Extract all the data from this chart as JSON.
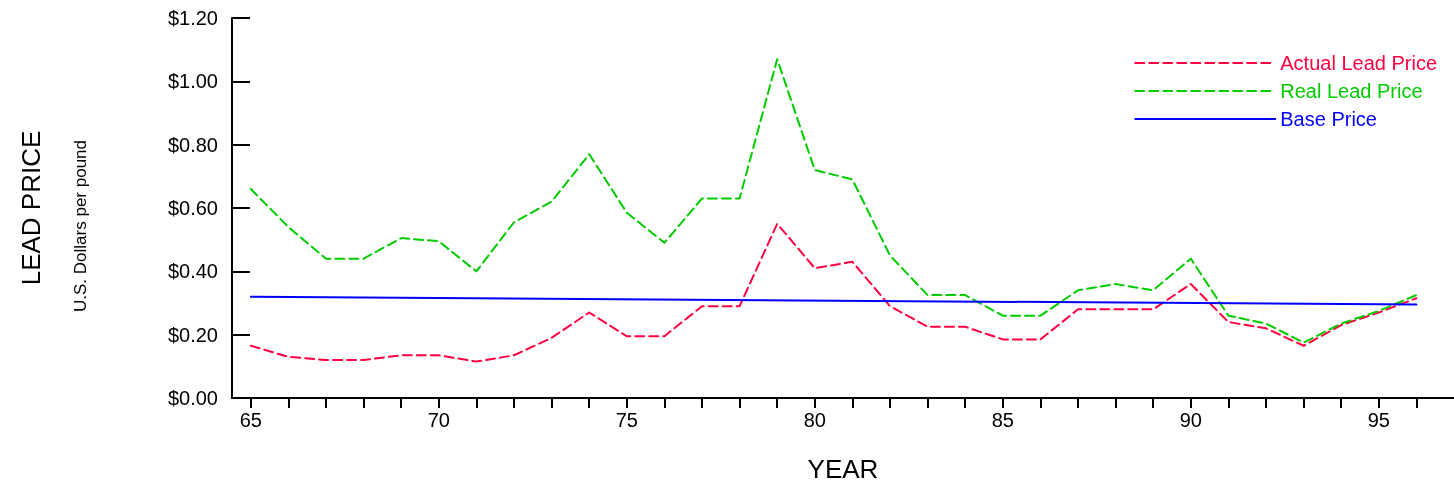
{
  "chart_data": {
    "type": "line",
    "ylabel": "LEAD PRICE",
    "xlabel": "YEAR",
    "annotations": [
      "U.S. Dollars per pound"
    ],
    "xlim": [
      64.5,
      97
    ],
    "xticks": [
      65,
      {
        "value": 66,
        "label": null
      },
      {
        "value": 67,
        "label": null
      },
      {
        "value": 68,
        "label": null
      },
      {
        "value": 69,
        "label": null
      },
      70,
      {
        "value": 71,
        "label": null
      },
      {
        "value": 72,
        "label": null
      },
      {
        "value": 73,
        "label": null
      },
      {
        "value": 74,
        "label": null
      },
      75,
      {
        "value": 76,
        "label": null
      },
      {
        "value": 77,
        "label": null
      },
      {
        "value": 78,
        "label": null
      },
      {
        "value": 79,
        "label": null
      },
      80,
      {
        "value": 81,
        "label": null
      },
      {
        "value": 82,
        "label": null
      },
      {
        "value": 83,
        "label": null
      },
      {
        "value": 84,
        "label": null
      },
      85,
      {
        "value": 86,
        "label": null
      },
      {
        "value": 87,
        "label": null
      },
      {
        "value": 88,
        "label": null
      },
      {
        "value": 89,
        "label": null
      },
      90,
      {
        "value": 91,
        "label": null
      },
      {
        "value": 92,
        "label": null
      },
      {
        "value": 93,
        "label": null
      },
      {
        "value": 94,
        "label": null
      },
      95,
      {
        "value": 96,
        "label": null
      }
    ],
    "ylim": [
      0,
      1.2
    ],
    "yticks": [
      {
        "value": 0,
        "label": "$0.00"
      },
      {
        "value": 0.2,
        "label": "$0.20"
      },
      {
        "value": 0.4,
        "label": "$0.40"
      },
      {
        "value": 0.6,
        "label": "$0.60"
      },
      {
        "value": 0.8,
        "label": "$0.80"
      },
      {
        "value": 1.0,
        "label": "$1.00"
      },
      {
        "value": 1.2,
        "label": "$1.20"
      }
    ],
    "x": [
      65,
      66,
      67,
      68,
      69,
      70,
      71,
      72,
      73,
      74,
      75,
      76,
      77,
      78,
      79,
      80,
      81,
      82,
      83,
      84,
      85,
      86,
      87,
      88,
      89,
      90,
      91,
      92,
      93,
      94,
      95,
      96
    ],
    "series": [
      {
        "name": "Actual Lead Price",
        "color": "#ff0040",
        "line_style": "dashed",
        "values": [
          0.165,
          0.13,
          0.12,
          0.12,
          0.135,
          0.135,
          0.115,
          0.135,
          0.19,
          0.27,
          0.195,
          0.195,
          0.29,
          0.29,
          0.55,
          0.41,
          0.43,
          0.29,
          0.225,
          0.225,
          0.185,
          0.185,
          0.28,
          0.28,
          0.28,
          0.36,
          0.24,
          0.22,
          0.165,
          0.23,
          0.27,
          0.315
        ]
      },
      {
        "name": "Real Lead Price",
        "color": "#00cc00",
        "line_style": "dashed",
        "values": [
          0.66,
          0.54,
          0.44,
          0.44,
          0.505,
          0.495,
          0.4,
          0.555,
          0.62,
          0.77,
          0.585,
          0.49,
          0.63,
          0.63,
          1.07,
          0.72,
          0.69,
          0.45,
          0.325,
          0.325,
          0.26,
          0.26,
          0.34,
          0.36,
          0.34,
          0.44,
          0.26,
          0.235,
          0.175,
          0.235,
          0.275,
          0.325
        ]
      },
      {
        "name": "Base Price",
        "color": "#0000ff",
        "line_style": "solid",
        "x": [
          65,
          96
        ],
        "values": [
          0.32,
          0.295
        ]
      }
    ],
    "legend": "top right",
    "grid": false,
    "marker": "none"
  }
}
